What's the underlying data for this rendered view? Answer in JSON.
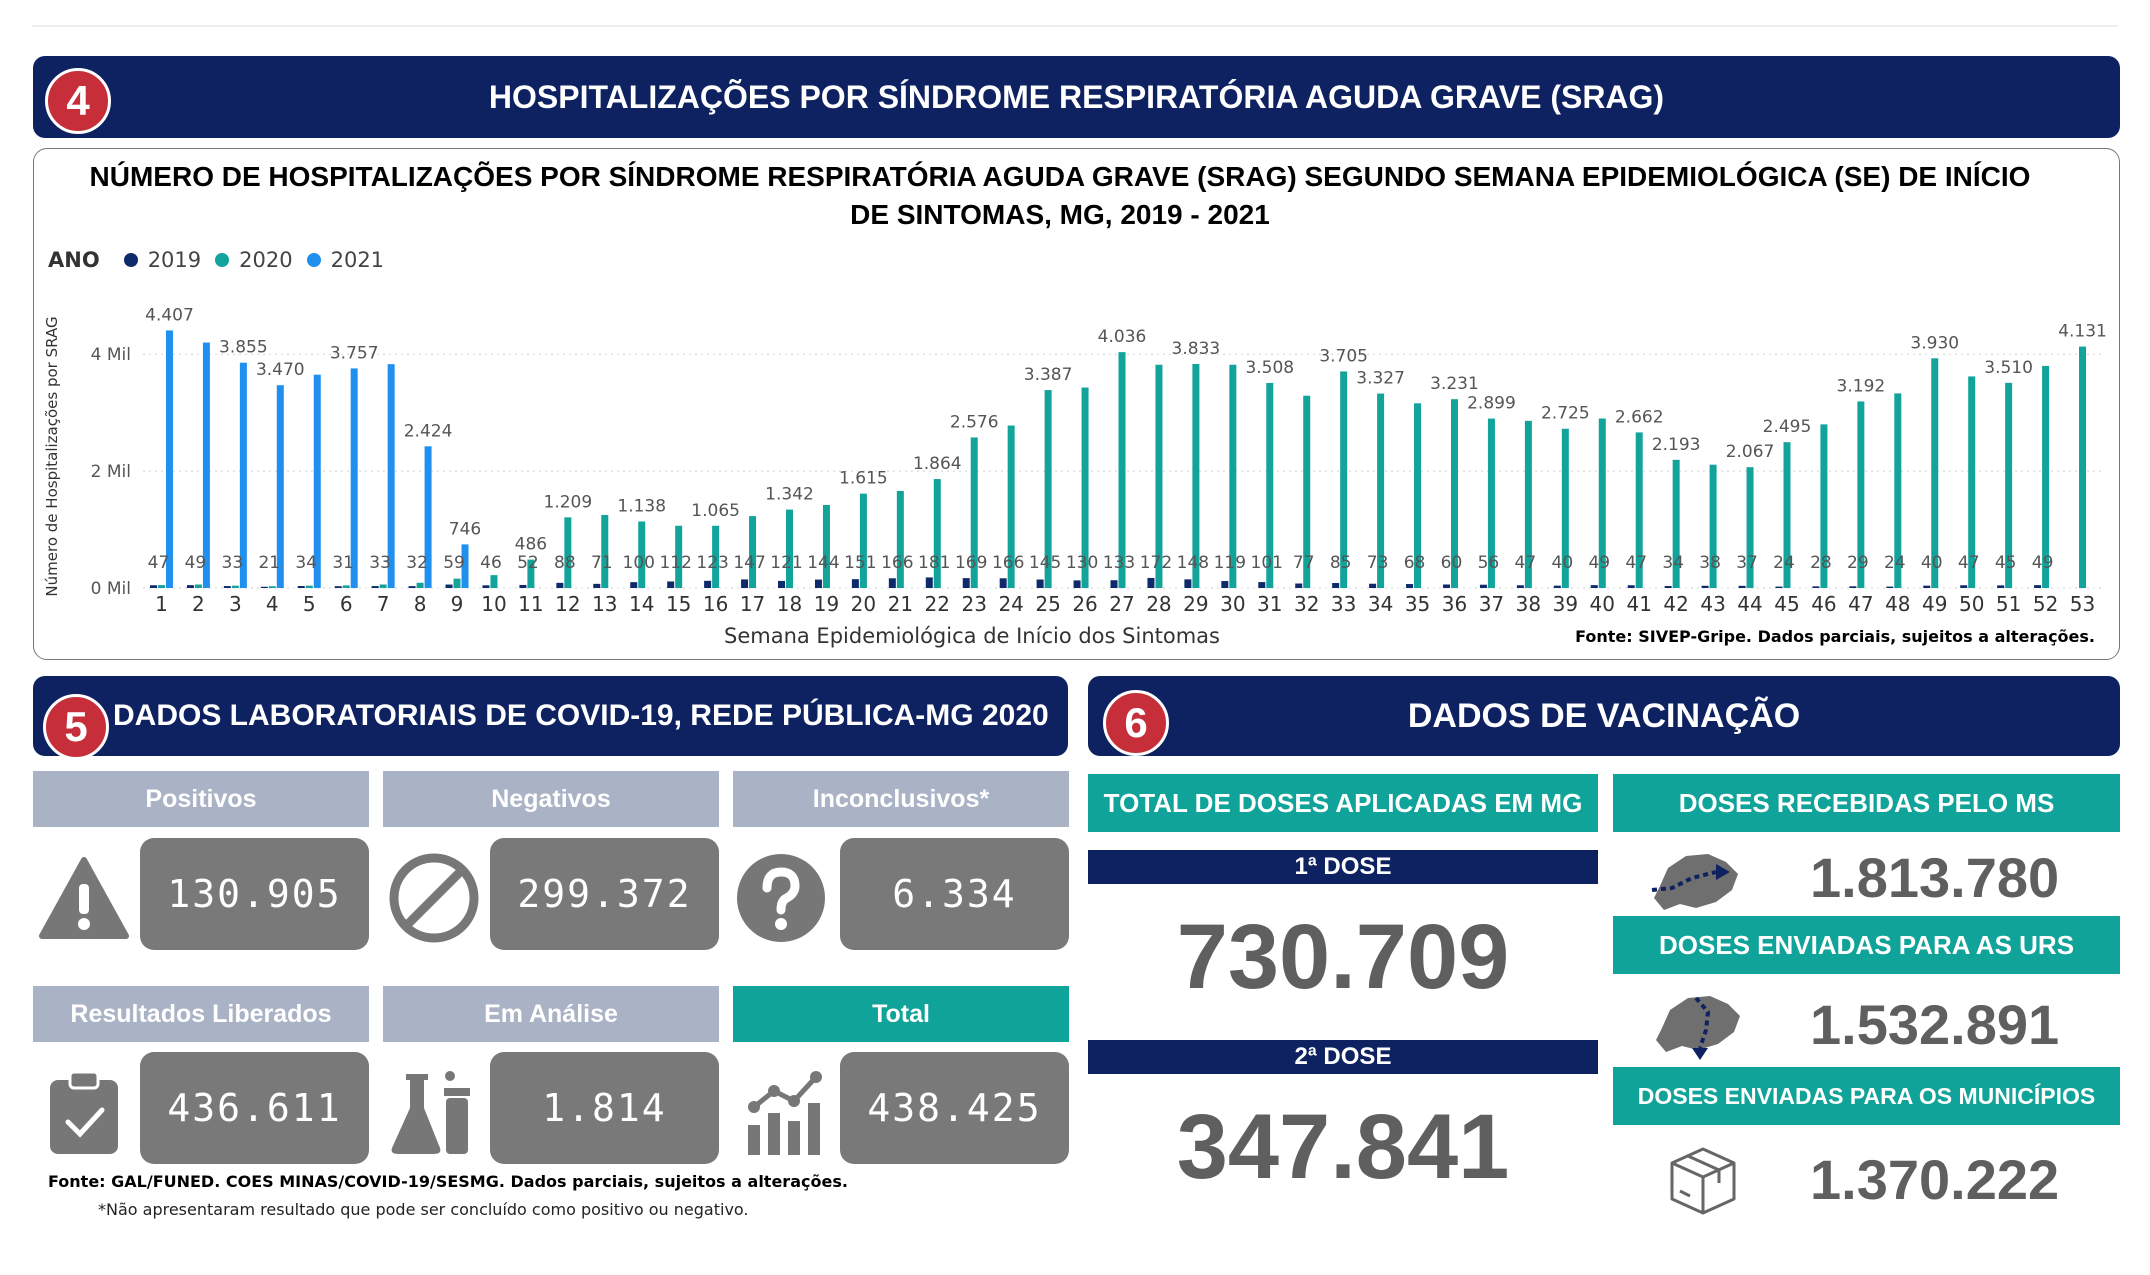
{
  "section4": {
    "number": "4",
    "title": "HOSPITALIZAÇÕES POR SÍNDROME RESPIRATÓRIA AGUDA GRAVE (SRAG)"
  },
  "chart": {
    "title": "NÚMERO DE HOSPITALIZAÇÕES POR SÍNDROME RESPIRATÓRIA AGUDA GRAVE (SRAG) SEGUNDO SEMANA EPIDEMIOLÓGICA (SE) DE INÍCIO DE SINTOMAS, MG, 2019 - 2021",
    "legend_title": "ANO",
    "source": "Fonte: SIVEP-Gripe. Dados parciais, sujeitos a alterações."
  },
  "chart_data": {
    "type": "bar",
    "title": "NÚMERO DE HOSPITALIZAÇÕES POR SÍNDROME RESPIRATÓRIA AGUDA GRAVE (SRAG) SEGUNDO SEMANA EPIDEMIOLÓGICA (SE) DE INÍCIO DE SINTOMAS, MG, 2019 - 2021",
    "xlabel": "Semana Epidemiológica de Início dos Sintomas",
    "ylabel": "Número de Hospitalizações por SRAG",
    "ylim": [
      0,
      4500
    ],
    "yticks": [
      0,
      2000,
      4000
    ],
    "ytick_labels": [
      "0 Mil",
      "2 Mil",
      "4 Mil"
    ],
    "legend_position": "top-left",
    "grid": true,
    "categories": [
      "1",
      "2",
      "3",
      "4",
      "5",
      "6",
      "7",
      "8",
      "9",
      "10",
      "11",
      "12",
      "13",
      "14",
      "15",
      "16",
      "17",
      "18",
      "19",
      "20",
      "21",
      "22",
      "23",
      "24",
      "25",
      "26",
      "27",
      "28",
      "29",
      "30",
      "31",
      "32",
      "33",
      "34",
      "35",
      "36",
      "37",
      "38",
      "39",
      "40",
      "41",
      "42",
      "43",
      "44",
      "45",
      "46",
      "47",
      "48",
      "49",
      "50",
      "51",
      "52",
      "53"
    ],
    "series": [
      {
        "name": "2019",
        "color": "#0e2a6b",
        "values": [
          47,
          49,
          33,
          21,
          34,
          31,
          33,
          32,
          59,
          46,
          52,
          88,
          71,
          100,
          112,
          123,
          147,
          121,
          144,
          151,
          166,
          181,
          169,
          166,
          145,
          130,
          133,
          172,
          148,
          119,
          101,
          77,
          85,
          73,
          68,
          60,
          56,
          47,
          40,
          49,
          47,
          34,
          38,
          37,
          24,
          28,
          29,
          24,
          40,
          47,
          45,
          49,
          null
        ],
        "labels": [
          "47",
          "49",
          "33",
          "21",
          "34",
          "31",
          "33",
          "32",
          "59",
          "46",
          "52",
          "88",
          "71",
          "100",
          "112",
          "123",
          "147",
          "121",
          "144",
          "151",
          "166",
          "181",
          "169",
          "166",
          "145",
          "130",
          "133",
          "172",
          "148",
          "119",
          "101",
          "77",
          "85",
          "73",
          "68",
          "60",
          "56",
          "47",
          "40",
          "49",
          "47",
          "34",
          "38",
          "37",
          "24",
          "28",
          "29",
          "24",
          "40",
          "47",
          "45",
          "49",
          ""
        ]
      },
      {
        "name": "2020",
        "color": "#12a39a",
        "values": [
          50,
          60,
          40,
          30,
          40,
          45,
          60,
          90,
          160,
          220,
          486,
          1209,
          1250,
          1138,
          1065,
          1065,
          1230,
          1342,
          1420,
          1615,
          1660,
          1864,
          2576,
          2780,
          3387,
          3430,
          4036,
          3820,
          3833,
          3820,
          3508,
          3290,
          3705,
          3327,
          3160,
          3231,
          2899,
          2860,
          2725,
          2900,
          2662,
          2193,
          2110,
          2067,
          2495,
          2800,
          3192,
          3330,
          3930,
          3620,
          3510,
          3800,
          4131
        ],
        "labels": [
          "",
          "",
          "",
          "",
          "",
          "",
          "",
          "",
          "",
          "",
          "486",
          "1.209",
          "",
          "1.138",
          "",
          "1.065",
          "",
          "1.342",
          "",
          "1.615",
          "",
          "1.864",
          "2.576",
          "",
          "3.387",
          "",
          "4.036",
          "",
          "3.833",
          "",
          "3.508",
          "",
          "3.705",
          "3.327",
          "",
          "3.231",
          "2.899",
          "",
          "2.725",
          "",
          "2.662",
          "2.193",
          "",
          "2.067",
          "2.495",
          "",
          "3.192",
          "",
          "3.930",
          "",
          "3.510",
          "",
          "4.131"
        ]
      },
      {
        "name": "2021",
        "color": "#1f8ff0",
        "values": [
          4407,
          4200,
          3855,
          3470,
          3650,
          3757,
          3830,
          2424,
          746,
          null,
          null,
          null,
          null,
          null,
          null,
          null,
          null,
          null,
          null,
          null,
          null,
          null,
          null,
          null,
          null,
          null,
          null,
          null,
          null,
          null,
          null,
          null,
          null,
          null,
          null,
          null,
          null,
          null,
          null,
          null,
          null,
          null,
          null,
          null,
          null,
          null,
          null,
          null,
          null,
          null,
          null,
          null,
          null
        ],
        "labels": [
          "4.407",
          "",
          "3.855",
          "3.470",
          "",
          "3.757",
          "",
          "2.424",
          "746",
          "",
          "",
          "",
          "",
          "",
          "",
          "",
          "",
          "",
          "",
          "",
          "",
          "",
          "",
          "",
          "",
          "",
          "",
          "",
          "",
          "",
          "",
          "",
          "",
          "",
          "",
          "",
          "",
          "",
          "",
          "",
          "",
          "",
          "",
          "",
          "",
          "",
          "",
          "",
          "",
          "",
          "",
          "",
          ""
        ]
      }
    ]
  },
  "section5": {
    "number": "5",
    "title": "DADOS LABORATORIAIS DE COVID-19, REDE PÚBLICA-MG 2020",
    "kpis": [
      {
        "label": "Positivos",
        "value": "130.905",
        "icon": "warning-icon"
      },
      {
        "label": "Negativos",
        "value": "299.372",
        "icon": "prohibited-icon"
      },
      {
        "label": "Inconclusivos*",
        "value": "6.334",
        "icon": "question-icon"
      },
      {
        "label": "Resultados Liberados",
        "value": "436.611",
        "icon": "clipboard-check-icon"
      },
      {
        "label": "Em Análise",
        "value": "1.814",
        "icon": "lab-flask-icon"
      },
      {
        "label": "Total",
        "value": "438.425",
        "icon": "growth-chart-icon"
      }
    ],
    "source": "Fonte: GAL/FUNED. COES MINAS/COVID-19/SESMG. Dados parciais, sujeitos a alterações.",
    "note": "*Não apresentaram resultado que pode ser concluído como positivo ou negativo."
  },
  "section6": {
    "number": "6",
    "title": "DADOS DE VACINAÇÃO",
    "total_header": "TOTAL DE DOSES APLICADAS EM MG",
    "dose1_label": "1ª DOSE",
    "dose1_value": "730.709",
    "dose2_label": "2ª DOSE",
    "dose2_value": "347.841",
    "received_label": "DOSES RECEBIDAS PELO MS",
    "received_value": "1.813.780",
    "sent_urs_label": "DOSES ENVIADAS PARA AS URS",
    "sent_urs_value": "1.532.891",
    "sent_mun_label": "DOSES ENVIADAS PARA OS MUNICÍPIOS",
    "sent_mun_value": "1.370.222"
  },
  "colors": {
    "navy": "#0e2160",
    "teal": "#0fa399",
    "red_badge": "#c62f3a",
    "grey_header": "#aab3c5",
    "grey_value": "#797979"
  }
}
